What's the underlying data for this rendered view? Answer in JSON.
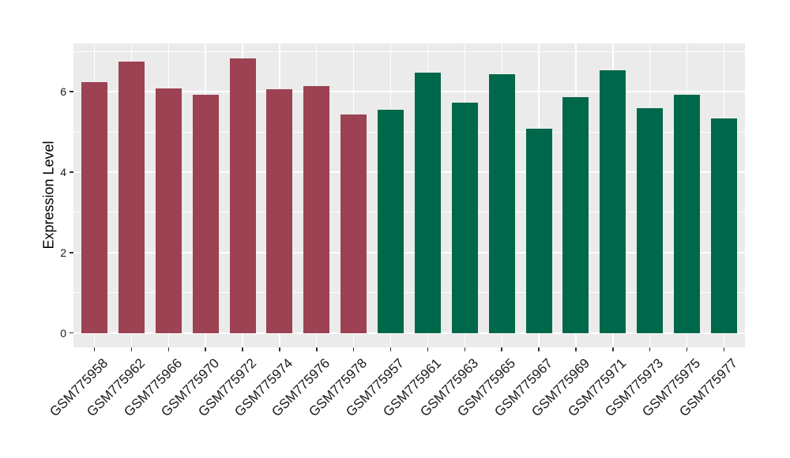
{
  "style": {
    "page_bg": "#FFFFFF",
    "plot_bg": "#EBEBEB",
    "grid_color": "#FFFFFF",
    "tick_mark_color": "#333333",
    "axis_text_color": "#1A1A1A",
    "axis_title_color": "#000000",
    "group_colors": {
      "maroon": "#9C4253",
      "green": "#00684A"
    }
  },
  "chart_data": {
    "type": "bar",
    "ylabel": "Expression Level",
    "ylim": [
      0,
      7.2
    ],
    "yticks_major": [
      0,
      2,
      4,
      6
    ],
    "yticks_minor": [
      1,
      3,
      5,
      7
    ],
    "grid": "on",
    "legend": "none",
    "x_label_rotation_deg": 45,
    "categories": [
      "GSM775958",
      "GSM775962",
      "GSM775966",
      "GSM775970",
      "GSM775972",
      "GSM775974",
      "GSM775976",
      "GSM775978",
      "GSM775957",
      "GSM775961",
      "GSM775963",
      "GSM775965",
      "GSM775967",
      "GSM775969",
      "GSM775971",
      "GSM775973",
      "GSM775975",
      "GSM775977"
    ],
    "bars": [
      {
        "label": "GSM775958",
        "value": 6.23,
        "group": "maroon"
      },
      {
        "label": "GSM775962",
        "value": 6.74,
        "group": "maroon"
      },
      {
        "label": "GSM775966",
        "value": 6.08,
        "group": "maroon"
      },
      {
        "label": "GSM775970",
        "value": 5.93,
        "group": "maroon"
      },
      {
        "label": "GSM775972",
        "value": 6.83,
        "group": "maroon"
      },
      {
        "label": "GSM775974",
        "value": 6.05,
        "group": "maroon"
      },
      {
        "label": "GSM775976",
        "value": 6.14,
        "group": "maroon"
      },
      {
        "label": "GSM775978",
        "value": 5.44,
        "group": "maroon"
      },
      {
        "label": "GSM775957",
        "value": 5.55,
        "group": "green"
      },
      {
        "label": "GSM775961",
        "value": 6.47,
        "group": "green"
      },
      {
        "label": "GSM775963",
        "value": 5.72,
        "group": "green"
      },
      {
        "label": "GSM775965",
        "value": 6.44,
        "group": "green"
      },
      {
        "label": "GSM775967",
        "value": 5.08,
        "group": "green"
      },
      {
        "label": "GSM775969",
        "value": 5.87,
        "group": "green"
      },
      {
        "label": "GSM775971",
        "value": 6.53,
        "group": "green"
      },
      {
        "label": "GSM775973",
        "value": 5.58,
        "group": "green"
      },
      {
        "label": "GSM775975",
        "value": 5.92,
        "group": "green"
      },
      {
        "label": "GSM775977",
        "value": 5.33,
        "group": "green"
      }
    ]
  }
}
